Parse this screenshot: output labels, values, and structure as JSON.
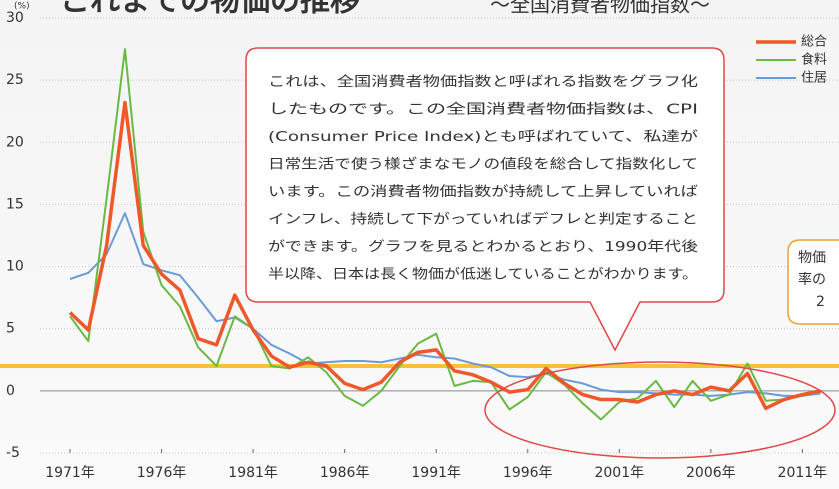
{
  "chart_data": {
    "type": "line",
    "title": "これまでの物価の推移",
    "subtitle": "～全国消費者物価指数～",
    "y_unit": "(%)",
    "x": [
      1971,
      1972,
      1973,
      1974,
      1975,
      1976,
      1977,
      1978,
      1979,
      1980,
      1981,
      1982,
      1983,
      1984,
      1985,
      1986,
      1987,
      1988,
      1989,
      1990,
      1991,
      1992,
      1993,
      1994,
      1995,
      1996,
      1997,
      1998,
      1999,
      2000,
      2001,
      2002,
      2003,
      2004,
      2005,
      2006,
      2007,
      2008,
      2009,
      2010,
      2011,
      2012
    ],
    "series": [
      {
        "name": "総合",
        "color": "#f0582a",
        "values": [
          6.3,
          4.9,
          11.7,
          23.2,
          11.7,
          9.4,
          8.1,
          4.2,
          3.7,
          7.7,
          4.9,
          2.8,
          1.9,
          2.3,
          2.0,
          0.6,
          0.1,
          0.7,
          2.3,
          3.1,
          3.3,
          1.6,
          1.3,
          0.7,
          -0.1,
          0.1,
          1.8,
          0.6,
          -0.3,
          -0.7,
          -0.7,
          -0.9,
          -0.3,
          0.0,
          -0.3,
          0.3,
          0.0,
          1.4,
          -1.4,
          -0.7,
          -0.3,
          0.0
        ]
      },
      {
        "name": "食料",
        "color": "#6ab945",
        "values": [
          6.0,
          4.0,
          15.5,
          27.5,
          12.8,
          8.5,
          6.8,
          3.5,
          2.0,
          6.0,
          5.0,
          2.0,
          1.8,
          2.7,
          1.5,
          -0.4,
          -1.2,
          0.0,
          2.0,
          3.8,
          4.6,
          0.4,
          0.8,
          0.7,
          -1.5,
          -0.5,
          1.5,
          0.5,
          -1.0,
          -2.3,
          -0.9,
          -0.6,
          0.8,
          -1.3,
          0.8,
          -0.8,
          -0.3,
          2.2,
          -0.8,
          -0.7,
          -0.4,
          0.0
        ]
      },
      {
        "name": "住居",
        "color": "#6b9bd6",
        "values": [
          9.0,
          9.5,
          11.0,
          14.3,
          10.2,
          9.7,
          9.3,
          7.5,
          5.6,
          5.9,
          5.0,
          3.7,
          3.0,
          2.2,
          2.3,
          2.4,
          2.4,
          2.3,
          2.6,
          2.9,
          2.7,
          2.6,
          2.2,
          1.9,
          1.2,
          1.1,
          1.4,
          0.9,
          0.6,
          0.1,
          -0.1,
          -0.1,
          -0.2,
          -0.3,
          -0.3,
          -0.4,
          -0.3,
          -0.1,
          -0.2,
          -0.4,
          -0.4,
          -0.2
        ]
      }
    ],
    "reference_line": {
      "value": 2,
      "color": "#f7c23a"
    },
    "xlim": [
      1970.7,
      2013
    ],
    "xticks": [
      {
        "value": 1971,
        "label": "1971年"
      },
      {
        "value": 1976,
        "label": "1976年"
      },
      {
        "value": 1981,
        "label": "1981年"
      },
      {
        "value": 1986,
        "label": "1986年"
      },
      {
        "value": 1991,
        "label": "1991年"
      },
      {
        "value": 1996,
        "label": "1996年"
      },
      {
        "value": 2001,
        "label": "2001年"
      },
      {
        "value": 2006,
        "label": "2006年"
      },
      {
        "value": 2011,
        "label": "2011年"
      }
    ],
    "ylim": [
      -5,
      30
    ],
    "yticks": [
      -5,
      0,
      5,
      10,
      15,
      20,
      25,
      30
    ],
    "grid": true,
    "legend": "top-right",
    "annotation": [
      "これは、全国消費者物価指数と呼ばれる指数をグラフ化",
      "したものです。この全国消費者物価指数は、CPI",
      "(Consumer Price Index)とも呼ばれていて、私達が",
      "日常生活で使う様ざまなモノの値段を総合して指数化して",
      "います。この消費者物価指数が持続して上昇していれば",
      "インフレ、持続して下がっていればデフレと判定すること",
      "ができます。グラフを見るとわかるとおり、1990年代後",
      "半以降、日本は長く物価が低迷していることがわかります。"
    ],
    "annotation_right": [
      "物価",
      "率の",
      "2"
    ]
  }
}
